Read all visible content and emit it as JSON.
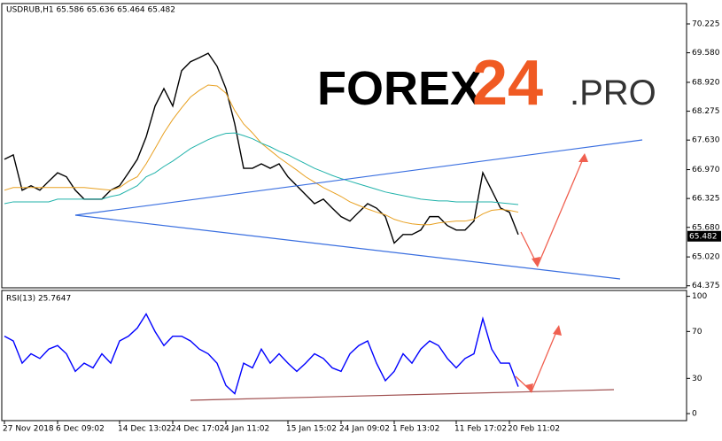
{
  "watermark": [
    "FOREX",
    "24",
    ".PRO"
  ],
  "chart_data": [
    {
      "type": "line",
      "title": "USDRUB,H1 65.586 65.636 65.464 65.482",
      "series": [
        {
          "color": "#000000",
          "values": [
            67.2,
            67.3,
            66.51,
            66.61,
            66.51,
            66.71,
            66.9,
            66.81,
            66.51,
            66.31,
            66.31,
            66.31,
            66.51,
            66.61,
            66.9,
            67.2,
            67.7,
            68.39,
            68.78,
            68.39,
            69.18,
            69.38,
            69.47,
            69.57,
            69.28,
            68.78,
            67.99,
            67.0,
            67.0,
            67.1,
            67.0,
            67.1,
            66.81,
            66.61,
            66.41,
            66.21,
            66.31,
            66.11,
            65.92,
            65.82,
            66.02,
            66.21,
            66.11,
            65.92,
            65.33,
            65.52,
            65.52,
            65.62,
            65.92,
            65.92,
            65.72,
            65.62,
            65.62,
            65.82,
            66.9,
            66.51,
            66.11,
            66.02,
            65.52
          ]
        },
        {
          "color": "#e8a020",
          "values": [
            66.51,
            66.57,
            66.57,
            66.57,
            66.57,
            66.57,
            66.57,
            66.57,
            66.57,
            66.57,
            66.55,
            66.53,
            66.51,
            66.57,
            66.71,
            66.81,
            67.1,
            67.44,
            67.79,
            68.09,
            68.35,
            68.59,
            68.74,
            68.86,
            68.84,
            68.68,
            68.29,
            67.99,
            67.79,
            67.56,
            67.4,
            67.24,
            67.1,
            66.96,
            66.81,
            66.69,
            66.57,
            66.47,
            66.37,
            66.25,
            66.17,
            66.09,
            66.02,
            65.96,
            65.86,
            65.8,
            65.76,
            65.74,
            65.74,
            65.78,
            65.8,
            65.82,
            65.82,
            65.86,
            65.98,
            66.06,
            66.08,
            66.06,
            66.02
          ]
        },
        {
          "color": "#20b2aa",
          "values": [
            66.21,
            66.25,
            66.25,
            66.25,
            66.25,
            66.25,
            66.31,
            66.31,
            66.31,
            66.31,
            66.31,
            66.31,
            66.37,
            66.41,
            66.51,
            66.61,
            66.81,
            66.9,
            67.04,
            67.16,
            67.3,
            67.44,
            67.54,
            67.64,
            67.72,
            67.78,
            67.79,
            67.73,
            67.66,
            67.56,
            67.48,
            67.38,
            67.3,
            67.2,
            67.1,
            67.0,
            66.92,
            66.84,
            66.77,
            66.71,
            66.65,
            66.59,
            66.53,
            66.47,
            66.43,
            66.39,
            66.35,
            66.31,
            66.29,
            66.27,
            66.27,
            66.25,
            66.25,
            66.25,
            66.25,
            66.25,
            66.23,
            66.21,
            66.19
          ]
        }
      ],
      "last_price": 65.482,
      "ylim": [
        64.33,
        70.68
      ],
      "yticks": [
        70.225,
        {
          "value": 69.58,
          "label": "69.580"
        },
        {
          "value": 68.92,
          "label": "68.920"
        },
        68.275,
        {
          "value": 67.63,
          "label": "67.630"
        },
        {
          "value": 66.97,
          "label": "66.970"
        },
        66.325,
        {
          "value": 65.68,
          "label": "65.680"
        },
        {
          "value": 65.02,
          "label": "65.020"
        },
        64.375
      ]
    },
    {
      "type": "line",
      "title": "RSI(13) 25.7647",
      "categories": [
        "27 Nov 2018",
        null,
        null,
        null,
        null,
        null,
        "6 Dec 09:02",
        null,
        null,
        null,
        null,
        null,
        null,
        "14 Dec 13:02",
        null,
        null,
        null,
        null,
        null,
        "24 Dec 17:02",
        null,
        null,
        null,
        null,
        null,
        "4 Jan 11:02",
        null,
        null,
        null,
        null,
        null,
        null,
        "15 Jan 15:02",
        null,
        null,
        null,
        null,
        null,
        "24 Jan 09:02",
        null,
        null,
        null,
        null,
        null,
        "1 Feb 13:02",
        null,
        null,
        null,
        null,
        null,
        null,
        "11 Feb 17:02",
        null,
        null,
        null,
        null,
        null,
        "20 Feb 11:02",
        null
      ],
      "series": [
        {
          "color": "#0000ff",
          "values": [
            66,
            62,
            43,
            51,
            47,
            55,
            58,
            51,
            36,
            43,
            39,
            51,
            43,
            62,
            66,
            73,
            85,
            70,
            58,
            66,
            66,
            62,
            55,
            51,
            43,
            24,
            17,
            43,
            39,
            55,
            43,
            51,
            43,
            36,
            43,
            51,
            47,
            39,
            36,
            51,
            58,
            62,
            43,
            28,
            36,
            51,
            43,
            55,
            62,
            58,
            47,
            39,
            47,
            51,
            81,
            55,
            43,
            43,
            23
          ]
        }
      ],
      "ylim": [
        -6,
        105
      ],
      "yticks": [
        0,
        30,
        70,
        100
      ]
    }
  ]
}
